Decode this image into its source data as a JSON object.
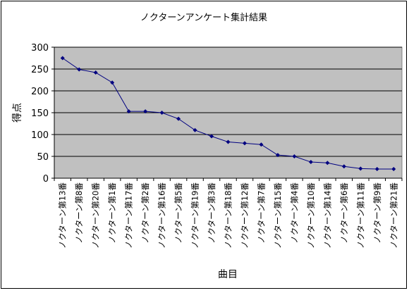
{
  "chart_data": {
    "type": "line",
    "title": "ノクターンアンケート集計結果",
    "xlabel": "曲目",
    "ylabel": "得点",
    "ylim": [
      0,
      300
    ],
    "yticks": [
      0,
      50,
      100,
      150,
      200,
      250,
      300
    ],
    "grid": true,
    "legend": "none",
    "categories": [
      "ノクターン第13番",
      "ノクターン第8番",
      "ノクターン第20番",
      "ノクターン第1番",
      "ノクターン第17番",
      "ノクターン第2番",
      "ノクターン第16番",
      "ノクターン第5番",
      "ノクターン第19番",
      "ノクターン第3番",
      "ノクターン第18番",
      "ノクターン第12番",
      "ノクターン第7番",
      "ノクターン第15番",
      "ノクターン第4番",
      "ノクターン第10番",
      "ノクターン第14番",
      "ノクターン第6番",
      "ノクターン第11番",
      "ノクターン第9番",
      "ノクターン第21番"
    ],
    "values": [
      275,
      249,
      242,
      219,
      153,
      153,
      150,
      136,
      110,
      96,
      83,
      80,
      77,
      53,
      50,
      37,
      35,
      27,
      22,
      21,
      21
    ],
    "colors": {
      "plot_background": "#c0c0c0",
      "series": "#000080",
      "grid": "#000000"
    }
  }
}
